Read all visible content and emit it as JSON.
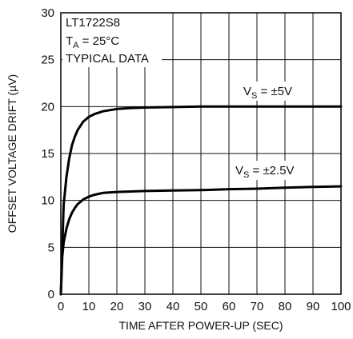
{
  "chart_data": {
    "type": "line",
    "xlabel": "TIME AFTER POWER-UP (SEC)",
    "ylabel": "OFFSET VOLTAGE DRIFT (µV)",
    "xlim": [
      0,
      100
    ],
    "ylim": [
      0,
      30
    ],
    "x_ticks": [
      0,
      10,
      20,
      30,
      40,
      50,
      60,
      70,
      80,
      90,
      100
    ],
    "y_ticks": [
      0,
      5,
      10,
      15,
      20,
      25,
      30
    ],
    "grid": true,
    "conditions": {
      "part": "LT1722S8",
      "temperature_label": "T",
      "temperature_sub": "A",
      "temperature_value": " = 25°C",
      "data_label": "TYPICAL DATA"
    },
    "series": [
      {
        "label_main": "V",
        "label_sub": "S",
        "label_rest": " = ±5V",
        "x": [
          0,
          1,
          2,
          3,
          4,
          5,
          6,
          8,
          10,
          12,
          15,
          20,
          25,
          30,
          40,
          50,
          60,
          70,
          80,
          90,
          100
        ],
        "y": [
          0,
          9.5,
          12.5,
          14.5,
          15.9,
          16.8,
          17.5,
          18.4,
          18.9,
          19.2,
          19.5,
          19.75,
          19.85,
          19.9,
          19.95,
          20.0,
          20.0,
          20.0,
          20.0,
          20.0,
          20.0
        ]
      },
      {
        "label_main": "V",
        "label_sub": "S",
        "label_rest": " = ±2.5V",
        "x": [
          0,
          0.5,
          1,
          2,
          3,
          4,
          5,
          6,
          8,
          10,
          12,
          15,
          20,
          30,
          40,
          50,
          60,
          70,
          80,
          90,
          100
        ],
        "y": [
          0,
          4.0,
          5.5,
          7.0,
          8.0,
          8.7,
          9.2,
          9.6,
          10.1,
          10.4,
          10.6,
          10.8,
          10.9,
          11.0,
          11.05,
          11.1,
          11.2,
          11.25,
          11.35,
          11.45,
          11.5
        ]
      }
    ]
  }
}
